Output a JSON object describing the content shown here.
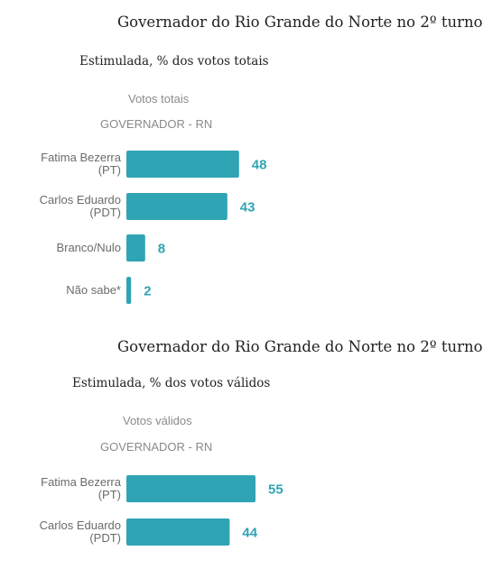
{
  "chart_data": [
    {
      "type": "bar",
      "orientation": "horizontal",
      "title": "Governador do Rio Grande do Norte no 2º turno",
      "subtitle": "Estimulada, % dos votos totais",
      "series_label": "Votos totais",
      "group_label": "GOVERNADOR - RN",
      "categories": [
        [
          "Fatima Bezerra",
          "(PT)"
        ],
        [
          "Carlos Eduardo",
          "(PDT)"
        ],
        [
          "Branco/Nulo"
        ],
        [
          "Não sabe*"
        ]
      ],
      "values": [
        48,
        43,
        8,
        2
      ],
      "color": "#2fa4b4"
    },
    {
      "type": "bar",
      "orientation": "horizontal",
      "title": "Governador do Rio Grande do Norte no 2º turno",
      "subtitle": "Estimulada, % dos votos válidos",
      "series_label": "Votos válidos",
      "group_label": "GOVERNADOR - RN",
      "categories": [
        [
          "Fatima Bezerra",
          "(PT)"
        ],
        [
          "Carlos Eduardo",
          "(PDT)"
        ]
      ],
      "values": [
        55,
        44
      ],
      "color": "#2fa4b4"
    }
  ]
}
